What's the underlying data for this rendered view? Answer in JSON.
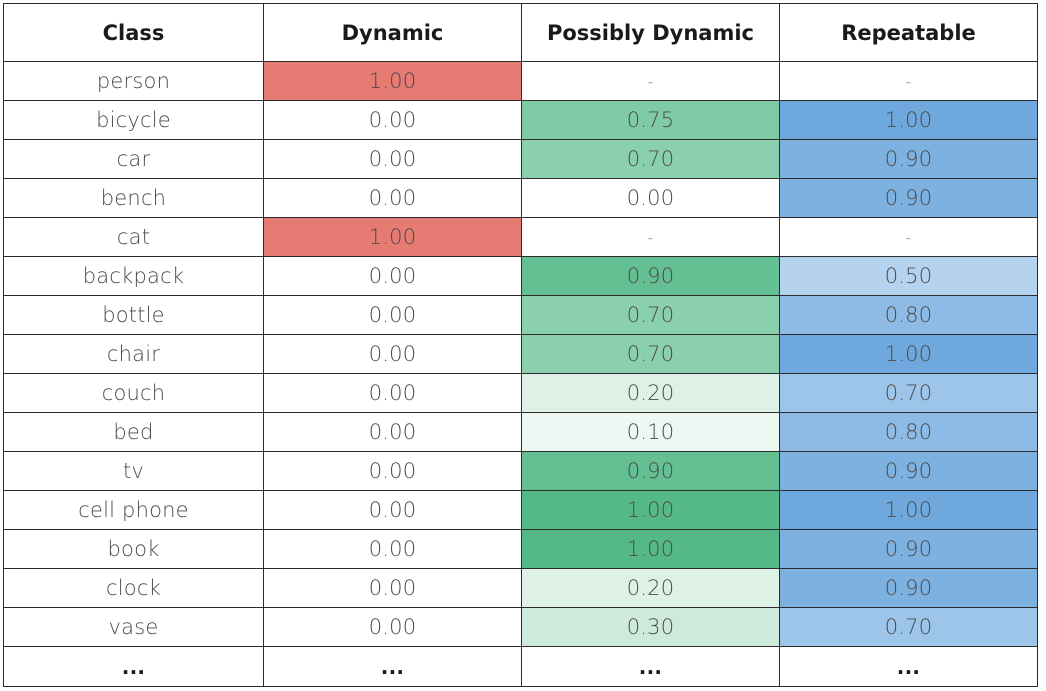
{
  "headers": [
    "Class",
    "Dynamic",
    "Possibly Dynamic",
    "Repeatable"
  ],
  "rows": [
    {
      "cells": [
        "person",
        "1.00",
        "-",
        "-"
      ],
      "bg": [
        "",
        "#e57b73",
        "",
        ""
      ]
    },
    {
      "cells": [
        "bicycle",
        "0.00",
        "0.75",
        "1.00"
      ],
      "bg": [
        "",
        "",
        "#7fcba6",
        "#6ea8dd"
      ]
    },
    {
      "cells": [
        "car",
        "0.00",
        "0.70",
        "0.90"
      ],
      "bg": [
        "",
        "",
        "#8ad0ae",
        "#7db1e0"
      ]
    },
    {
      "cells": [
        "bench",
        "0.00",
        "0.00",
        "0.90"
      ],
      "bg": [
        "",
        "",
        "",
        "#7db1e0"
      ]
    },
    {
      "cells": [
        "cat",
        "1.00",
        "-",
        "-"
      ],
      "bg": [
        "",
        "#e57b73",
        "",
        ""
      ]
    },
    {
      "cells": [
        "backpack",
        "0.00",
        "0.90",
        "0.50"
      ],
      "bg": [
        "",
        "",
        "#64c093",
        "#b5d3ee"
      ]
    },
    {
      "cells": [
        "bottle",
        "0.00",
        "0.70",
        "0.80"
      ],
      "bg": [
        "",
        "",
        "#8ad0ae",
        "#8dbbe5"
      ]
    },
    {
      "cells": [
        "chair",
        "0.00",
        "0.70",
        "1.00"
      ],
      "bg": [
        "",
        "",
        "#8ad0ae",
        "#6ea8dd"
      ]
    },
    {
      "cells": [
        "couch",
        "0.00",
        "0.20",
        "0.70"
      ],
      "bg": [
        "",
        "",
        "#ddf1e6",
        "#9dc5e9"
      ]
    },
    {
      "cells": [
        "bed",
        "0.00",
        "0.10",
        "0.80"
      ],
      "bg": [
        "",
        "",
        "#eef8f2",
        "#8dbbe5"
      ]
    },
    {
      "cells": [
        "tv",
        "0.00",
        "0.90",
        "0.90"
      ],
      "bg": [
        "",
        "",
        "#64c093",
        "#7db1e0"
      ]
    },
    {
      "cells": [
        "cell phone",
        "0.00",
        "1.00",
        "1.00"
      ],
      "bg": [
        "",
        "",
        "#55b987",
        "#6ea8dd"
      ]
    },
    {
      "cells": [
        "book",
        "0.00",
        "1.00",
        "0.90"
      ],
      "bg": [
        "",
        "",
        "#55b987",
        "#7db1e0"
      ]
    },
    {
      "cells": [
        "clock",
        "0.00",
        "0.20",
        "0.90"
      ],
      "bg": [
        "",
        "",
        "#ddf1e6",
        "#7db1e0"
      ]
    },
    {
      "cells": [
        "vase",
        "0.00",
        "0.30",
        "0.70"
      ],
      "bg": [
        "",
        "",
        "#cdeadb",
        "#9dc5e9"
      ]
    }
  ],
  "ellipsis": [
    "...",
    "...",
    "...",
    "..."
  ]
}
